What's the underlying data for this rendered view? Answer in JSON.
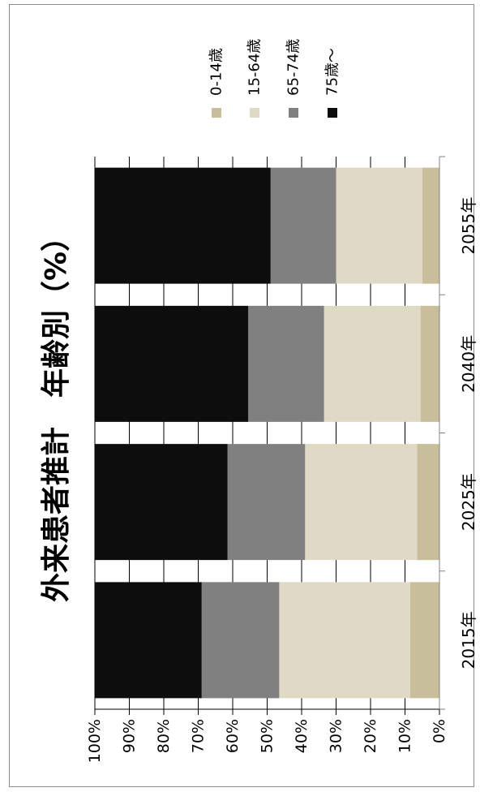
{
  "chart_data": {
    "type": "bar",
    "stacked": true,
    "percent": true,
    "orientation": "rotated-vertical",
    "title": "外来患者推計　年齢別（%）",
    "categories": [
      "2015年",
      "2025年",
      "2040年",
      "2055年"
    ],
    "series": [
      {
        "name": "0-14歳",
        "color": "#c8be9a",
        "values": [
          8.5,
          6.5,
          5.5,
          5.0
        ]
      },
      {
        "name": "15-64歳",
        "color": "#dfdac6",
        "values": [
          38.0,
          32.5,
          28.0,
          25.0
        ]
      },
      {
        "name": "65-74歳",
        "color": "#808080",
        "values": [
          22.5,
          22.5,
          22.0,
          19.0
        ]
      },
      {
        "name": "75歳～",
        "color": "#0d0d0d",
        "values": [
          31.0,
          38.5,
          44.5,
          51.0
        ]
      }
    ],
    "ylim": [
      0,
      100
    ],
    "ytick_labels": [
      "0%",
      "10%",
      "20%",
      "30%",
      "40%",
      "50%",
      "60%",
      "70%",
      "80%",
      "90%",
      "100%"
    ],
    "grid": true,
    "legend_position": "top"
  }
}
